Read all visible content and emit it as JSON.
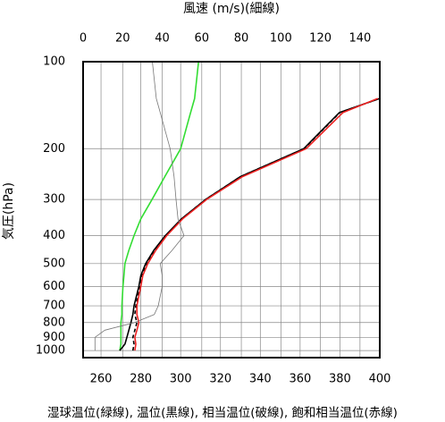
{
  "chart_data": {
    "type": "line",
    "title": "風速 (m/s)(細線)",
    "ylabel": "気圧(hPa)",
    "xlabel": "湿球温位(緑線), 温位(黒線), 相当温位(破線), 飽和相当温位(赤線)",
    "y": [
      1000,
      950,
      900,
      850,
      800,
      750,
      700,
      600,
      550,
      500,
      450,
      400,
      350,
      300,
      250,
      200,
      150,
      134,
      100
    ],
    "series": [
      {
        "color": "#33dd33",
        "values": [
          269.4,
          270,
          270,
          270,
          270,
          270.5,
          270.5,
          271,
          271.5,
          272,
          274,
          276.6,
          280,
          285.6,
          292,
          300,
          305,
          307,
          309
        ]
      },
      {
        "color": "#000000",
        "values": [
          269.4,
          272,
          273,
          274,
          275,
          276,
          276.6,
          279,
          280,
          282.4,
          286.5,
          292.3,
          300.4,
          312.5,
          330,
          361.8,
          379.7,
          400,
          null
        ]
      },
      {
        "color": "#000000",
        "dashed": true,
        "values": [
          276,
          276.6,
          276,
          277,
          278,
          277,
          277.5,
          279.5,
          280.5,
          283,
          287,
          292.5,
          300.5,
          312.5,
          330,
          362,
          380,
          400,
          null
        ]
      },
      {
        "color": "#ee2222",
        "values": [
          277,
          277.5,
          277,
          278,
          279,
          278,
          278,
          280,
          281,
          283.5,
          287.5,
          293,
          301,
          313,
          331,
          363,
          381.5,
          399,
          null
        ]
      },
      {
        "color": "#777777",
        "axis": "x2",
        "thin": true,
        "values": [
          6,
          6,
          6,
          11,
          26,
          36,
          38,
          40,
          40,
          39,
          45,
          51,
          48,
          47,
          46,
          44,
          39,
          37,
          35
        ]
      }
    ],
    "xlim": [
      251,
      400
    ],
    "xticks": [
      260,
      280,
      300,
      320,
      340,
      360,
      380,
      400
    ],
    "x2lim": [
      0,
      150
    ],
    "x2ticks": [
      0,
      20,
      40,
      60,
      80,
      100,
      120,
      140
    ],
    "ylim": [
      1058,
      100
    ],
    "ylog": true,
    "yticks": [
      100,
      200,
      300,
      400,
      500,
      600,
      700,
      800,
      900,
      1000
    ],
    "grid": true
  }
}
